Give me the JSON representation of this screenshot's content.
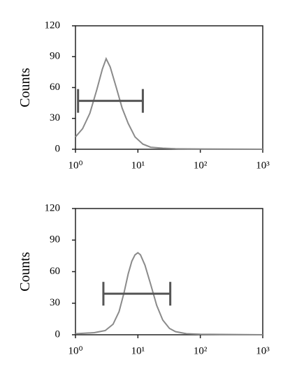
{
  "chart_data": [
    {
      "type": "line",
      "ylabel": "Counts",
      "xscale": "log",
      "color": "#8a8a8a",
      "gate_color": "#555555",
      "xlim": [
        1,
        1000
      ],
      "ylim": [
        0,
        120
      ],
      "xticks": [
        {
          "value": 1,
          "label": "10⁰"
        },
        {
          "value": 10,
          "label": "10¹"
        },
        {
          "value": 100,
          "label": "10²"
        },
        {
          "value": 1000,
          "label": "10³"
        }
      ],
      "yticks": [
        0,
        30,
        60,
        90,
        120
      ],
      "x": [
        1,
        1.3,
        1.7,
        2.2,
        2.7,
        3.1,
        3.6,
        4.5,
        5.6,
        7,
        9,
        12,
        16,
        25,
        40,
        100,
        1000
      ],
      "values": [
        12,
        20,
        35,
        58,
        78,
        88,
        80,
        60,
        40,
        25,
        12,
        5,
        2,
        1,
        0.5,
        0.3,
        0
      ],
      "gate": {
        "x": [
          1.1,
          12
        ],
        "y": 47
      }
    },
    {
      "type": "line",
      "ylabel": "Counts",
      "xscale": "log",
      "color": "#8a8a8a",
      "gate_color": "#555555",
      "xlim": [
        1,
        1000
      ],
      "ylim": [
        0,
        120
      ],
      "xticks": [
        {
          "value": 1,
          "label": "10⁰"
        },
        {
          "value": 10,
          "label": "10¹"
        },
        {
          "value": 100,
          "label": "10²"
        },
        {
          "value": 1000,
          "label": "10³"
        }
      ],
      "yticks": [
        0,
        30,
        60,
        90,
        120
      ],
      "x": [
        1,
        2,
        3,
        4,
        5,
        6,
        7,
        8,
        9,
        10,
        11,
        13,
        16,
        20,
        25,
        32,
        40,
        60,
        100,
        1000
      ],
      "values": [
        1,
        2,
        4,
        10,
        22,
        40,
        58,
        70,
        76,
        78,
        76,
        66,
        48,
        28,
        14,
        6,
        3,
        1,
        0.5,
        0
      ],
      "gate": {
        "x": [
          2.8,
          33
        ],
        "y": 39
      }
    }
  ]
}
